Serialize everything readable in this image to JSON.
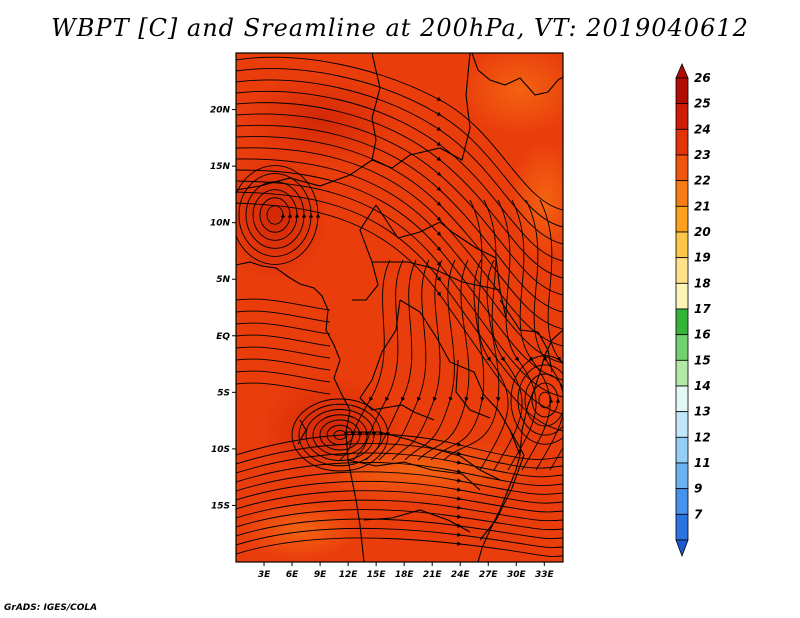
{
  "title": "WBPT [C] and Sreamline at 200hPa, VT: 2019040612",
  "footer": "GrADS: IGES/COLA",
  "map": {
    "lon_range": [
      0,
      35
    ],
    "lat_range": [
      -20,
      25
    ],
    "lat_ticks": [
      {
        "value": 20,
        "label": "20N"
      },
      {
        "value": 15,
        "label": "15N"
      },
      {
        "value": 10,
        "label": "10N"
      },
      {
        "value": 5,
        "label": "5N"
      },
      {
        "value": 0,
        "label": "EQ"
      },
      {
        "value": -5,
        "label": "5S"
      },
      {
        "value": -10,
        "label": "10S"
      },
      {
        "value": -15,
        "label": "15S"
      }
    ],
    "lon_ticks": [
      {
        "value": 3,
        "label": "3E"
      },
      {
        "value": 6,
        "label": "6E"
      },
      {
        "value": 9,
        "label": "9E"
      },
      {
        "value": 12,
        "label": "12E"
      },
      {
        "value": 15,
        "label": "15E"
      },
      {
        "value": 18,
        "label": "18E"
      },
      {
        "value": 21,
        "label": "21E"
      },
      {
        "value": 24,
        "label": "24E"
      },
      {
        "value": 27,
        "label": "27E"
      },
      {
        "value": 30,
        "label": "30E"
      },
      {
        "value": 33,
        "label": "33E"
      }
    ],
    "field_base_color": "#ea3d0c",
    "field_warm_color": "#d82c08",
    "field_cool_color": "#f25a10",
    "streamline_color": "#000000"
  },
  "colorbar": {
    "levels": [
      {
        "label": "26",
        "color": "#b30c04"
      },
      {
        "label": "25",
        "color": "#cf1c06"
      },
      {
        "label": "24",
        "color": "#e23408"
      },
      {
        "label": "23",
        "color": "#f0540e"
      },
      {
        "label": "22",
        "color": "#f77c14"
      },
      {
        "label": "21",
        "color": "#fba11e"
      },
      {
        "label": "20",
        "color": "#fdc64a"
      },
      {
        "label": "19",
        "color": "#fde28a"
      },
      {
        "label": "18",
        "color": "#fdf5b8"
      },
      {
        "label": "17",
        "color": "#35b43c"
      },
      {
        "label": "16",
        "color": "#72d06e"
      },
      {
        "label": "15",
        "color": "#b2e8a8"
      },
      {
        "label": "14",
        "color": "#e2f8f4"
      },
      {
        "label": "13",
        "color": "#c2e6fa"
      },
      {
        "label": "12",
        "color": "#96cdf7"
      },
      {
        "label": "11",
        "color": "#6cb2f3"
      },
      {
        "label": "9",
        "color": "#4792ec"
      },
      {
        "label": "7",
        "color": "#2a74e2"
      }
    ],
    "bottom_color": "#1c5ad4"
  }
}
